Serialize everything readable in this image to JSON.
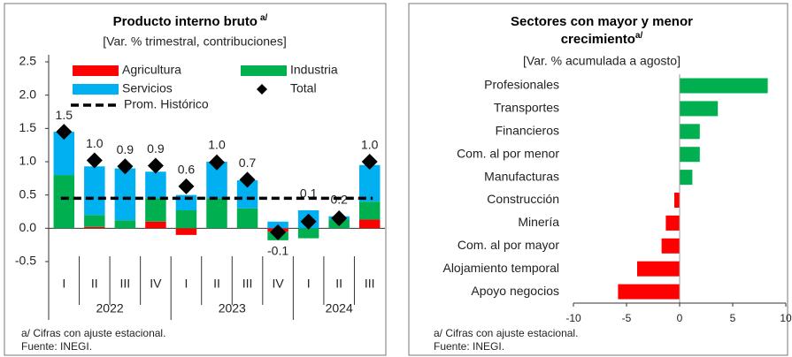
{
  "chart_data": [
    {
      "type": "stacked_bar",
      "title": "Producto interno bruto",
      "title_note": "a/",
      "subtitle": "[Var. % trimestral, contribuciones]",
      "groups": [
        {
          "label": "2022",
          "categories": [
            "I",
            "II",
            "III",
            "IV"
          ]
        },
        {
          "label": "2023",
          "categories": [
            "I",
            "II",
            "III",
            "IV"
          ]
        },
        {
          "label": "2024",
          "categories": [
            "I",
            "II",
            "III"
          ]
        }
      ],
      "series": [
        {
          "name": "Agricultura",
          "color": "#ff0000",
          "values": [
            0.0,
            0.02,
            0.0,
            0.1,
            -0.1,
            0.0,
            0.0,
            -0.05,
            0.0,
            0.0,
            0.13
          ]
        },
        {
          "name": "Industria",
          "color": "#00b050",
          "values": [
            0.8,
            0.18,
            0.12,
            0.35,
            0.27,
            0.45,
            0.3,
            -0.13,
            -0.15,
            0.13,
            0.27
          ]
        },
        {
          "name": "Servicios",
          "color": "#00b0f0",
          "values": [
            0.65,
            0.73,
            0.78,
            0.4,
            0.23,
            0.55,
            0.42,
            0.1,
            0.27,
            0.05,
            0.55
          ]
        }
      ],
      "total": {
        "name": "Total",
        "color": "#000000",
        "values": [
          1.45,
          1.02,
          0.93,
          0.94,
          0.63,
          0.99,
          0.73,
          -0.06,
          0.1,
          0.15,
          1.0
        ],
        "value_labels": [
          "1.5",
          "1.0",
          "0.9",
          "0.9",
          "0.6",
          "1.0",
          "0.7",
          "-0.1",
          "0.1",
          "0.2",
          "1.0"
        ]
      },
      "reference_line": {
        "name": "Prom. Histórico",
        "value": 0.45,
        "color": "#000000"
      },
      "ylim": [
        -0.5,
        2.5
      ],
      "yticks": [
        -0.5,
        {
          "value": 0,
          "label": "0.0"
        },
        0.5,
        {
          "value": 1,
          "label": "1.0"
        },
        1.5,
        {
          "value": 2,
          "label": "2.0"
        },
        2.5
      ],
      "notes": [
        "a/ Cifras con ajuste estacional.",
        "Fuente: INEGI."
      ]
    },
    {
      "type": "hbar",
      "title": [
        "Sectores con mayor y menor",
        "crecimiento"
      ],
      "title_note": "a/",
      "subtitle": "[Var. % acumulada a agosto]",
      "categories": [
        "Profesionales",
        "Transportes",
        "Financieros",
        "Com. al por menor",
        "Manufacturas",
        "Construcción",
        "Minería",
        "Com. al por mayor",
        "Alojamiento temporal",
        "Apoyo negocios"
      ],
      "values": [
        8.3,
        3.6,
        1.9,
        1.9,
        1.2,
        -0.5,
        -1.3,
        -1.7,
        -4.0,
        -5.8
      ],
      "positive_color": "#00b050",
      "negative_color": "#ff0000",
      "xlim": [
        -10,
        10
      ],
      "xticks": [
        -10,
        -5,
        0,
        5,
        10
      ],
      "notes": [
        "a/ Cifras con ajuste estacional.",
        "Fuente: INEGI."
      ]
    }
  ]
}
